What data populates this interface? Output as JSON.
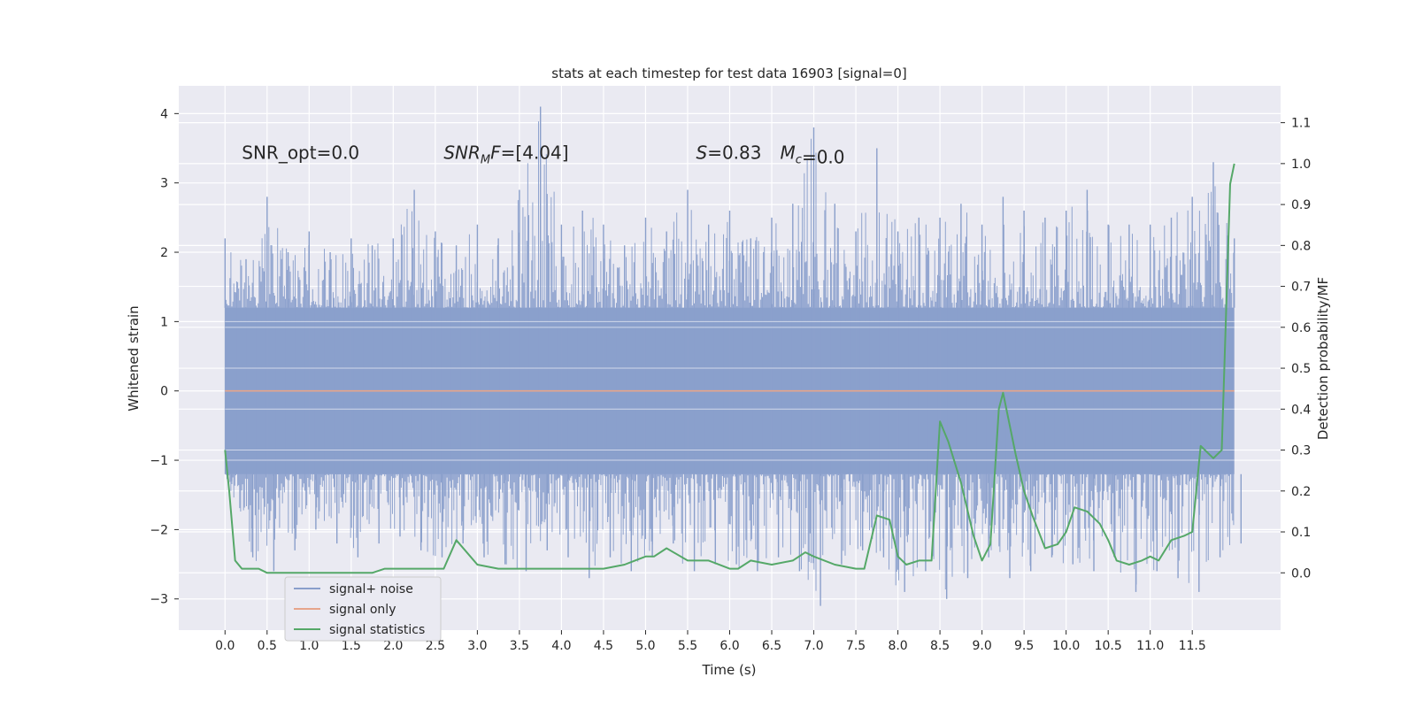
{
  "chart_data": {
    "type": "line",
    "title": "stats at each timestep for test data 16903 [signal=0]",
    "xlabel": "Time (s)",
    "ylabel": "Whitened strain",
    "y2label": "Detection probability/MF",
    "xlim": [
      -0.55,
      12.55
    ],
    "ylim": [
      -3.45,
      4.4
    ],
    "y2lim": [
      -0.14,
      1.19
    ],
    "xticks": [
      "0.0",
      "0.5",
      "1.0",
      "1.5",
      "2.0",
      "2.5",
      "3.0",
      "3.5",
      "4.0",
      "4.5",
      "5.0",
      "5.5",
      "6.0",
      "6.5",
      "7.0",
      "7.5",
      "8.0",
      "8.5",
      "9.0",
      "9.5",
      "10.0",
      "10.5",
      "11.0",
      "11.5"
    ],
    "yticks": [
      -3,
      -2,
      -1,
      0,
      1,
      2,
      3,
      4
    ],
    "y2ticks": [
      "0.0",
      "0.1",
      "0.2",
      "0.3",
      "0.4",
      "0.5",
      "0.6",
      "0.7",
      "0.8",
      "0.9",
      "1.0",
      "1.1"
    ],
    "grid": true,
    "legend_position": "lower-left",
    "annotations": [
      {
        "text": "SNR_opt=0.0",
        "x": 0.2,
        "y": 3.35
      },
      {
        "text": "SNR_MF=[4.04]",
        "x": 2.6,
        "y": 3.35
      },
      {
        "text": "S=0.83",
        "x": 5.6,
        "y": 3.35
      },
      {
        "text": "M_c=0.0",
        "x": 6.6,
        "y": 3.35
      }
    ],
    "series": [
      {
        "name": "signal+ noise",
        "axis": "left",
        "color": "#8a9fcb",
        "envelope": {
          "x": [
            0.0,
            0.25,
            0.5,
            0.75,
            1.0,
            1.25,
            1.5,
            1.75,
            2.0,
            2.25,
            2.5,
            2.75,
            3.0,
            3.25,
            3.5,
            3.75,
            4.0,
            4.25,
            4.5,
            4.75,
            5.0,
            5.25,
            5.5,
            5.75,
            6.0,
            6.25,
            6.5,
            6.75,
            7.0,
            7.25,
            7.5,
            7.75,
            8.0,
            8.25,
            8.5,
            8.75,
            9.0,
            9.25,
            9.5,
            9.75,
            10.0,
            10.25,
            10.5,
            10.75,
            11.0,
            11.25,
            11.5,
            11.75,
            12.0
          ],
          "upper": [
            2.2,
            1.9,
            2.8,
            2.0,
            2.3,
            2.0,
            2.2,
            2.1,
            2.2,
            2.9,
            2.3,
            2.1,
            2.4,
            2.2,
            2.9,
            4.1,
            2.4,
            2.6,
            2.4,
            2.1,
            2.5,
            2.3,
            2.9,
            2.4,
            2.6,
            2.2,
            2.5,
            2.7,
            3.8,
            2.7,
            2.3,
            3.5,
            2.3,
            2.5,
            2.5,
            2.7,
            2.4,
            2.8,
            2.6,
            2.5,
            2.6,
            2.9,
            2.4,
            2.4,
            2.4,
            2.5,
            2.8,
            3.3,
            2.2
          ],
          "lower": [
            -1.3,
            -2.4,
            -2.6,
            -2.3,
            -2.0,
            -2.2,
            -2.4,
            -2.2,
            -2.1,
            -2.3,
            -2.4,
            -2.2,
            -2.4,
            -2.5,
            -2.6,
            -2.3,
            -2.4,
            -2.7,
            -2.4,
            -2.6,
            -2.4,
            -2.2,
            -2.6,
            -2.5,
            -2.5,
            -2.6,
            -2.4,
            -2.6,
            -3.1,
            -2.5,
            -2.3,
            -2.4,
            -2.9,
            -2.6,
            -3.0,
            -2.7,
            -2.4,
            -2.7,
            -2.6,
            -2.4,
            -2.5,
            -2.6,
            -2.4,
            -2.9,
            -2.6,
            -2.7,
            -2.9,
            -2.4,
            -2.2
          ]
        }
      },
      {
        "name": "signal only",
        "axis": "left",
        "color": "#e6a58b",
        "x": [
          0.0,
          12.0
        ],
        "y": [
          0.0,
          0.0
        ]
      },
      {
        "name": "signal statistics",
        "axis": "right",
        "color": "#55a868",
        "x": [
          0.0,
          0.05,
          0.12,
          0.2,
          0.3,
          0.4,
          0.5,
          0.6,
          0.75,
          1.0,
          1.25,
          1.5,
          1.75,
          1.9,
          2.0,
          2.2,
          2.4,
          2.5,
          2.6,
          2.75,
          3.0,
          3.25,
          3.5,
          3.75,
          4.0,
          4.25,
          4.5,
          4.75,
          5.0,
          5.1,
          5.25,
          5.5,
          5.75,
          6.0,
          6.1,
          6.25,
          6.5,
          6.75,
          6.9,
          7.0,
          7.25,
          7.5,
          7.6,
          7.75,
          7.9,
          8.0,
          8.1,
          8.25,
          8.4,
          8.5,
          8.6,
          8.75,
          8.9,
          9.0,
          9.1,
          9.2,
          9.25,
          9.4,
          9.5,
          9.6,
          9.75,
          9.9,
          10.0,
          10.1,
          10.25,
          10.4,
          10.5,
          10.6,
          10.75,
          10.9,
          11.0,
          11.1,
          11.25,
          11.4,
          11.5,
          11.6,
          11.75,
          11.85,
          11.95,
          12.0
        ],
        "y": [
          0.3,
          0.2,
          0.03,
          0.01,
          0.01,
          0.01,
          0.0,
          0.0,
          0.0,
          0.0,
          0.0,
          0.0,
          0.0,
          0.01,
          0.01,
          0.01,
          0.01,
          0.01,
          0.01,
          0.08,
          0.02,
          0.01,
          0.01,
          0.01,
          0.01,
          0.01,
          0.01,
          0.02,
          0.04,
          0.04,
          0.06,
          0.03,
          0.03,
          0.01,
          0.01,
          0.03,
          0.02,
          0.03,
          0.05,
          0.04,
          0.02,
          0.01,
          0.01,
          0.14,
          0.13,
          0.04,
          0.02,
          0.03,
          0.03,
          0.37,
          0.32,
          0.22,
          0.09,
          0.03,
          0.07,
          0.4,
          0.44,
          0.29,
          0.2,
          0.14,
          0.06,
          0.07,
          0.1,
          0.16,
          0.15,
          0.12,
          0.08,
          0.03,
          0.02,
          0.03,
          0.04,
          0.03,
          0.08,
          0.09,
          0.1,
          0.31,
          0.28,
          0.3,
          0.95,
          1.0
        ]
      }
    ]
  }
}
